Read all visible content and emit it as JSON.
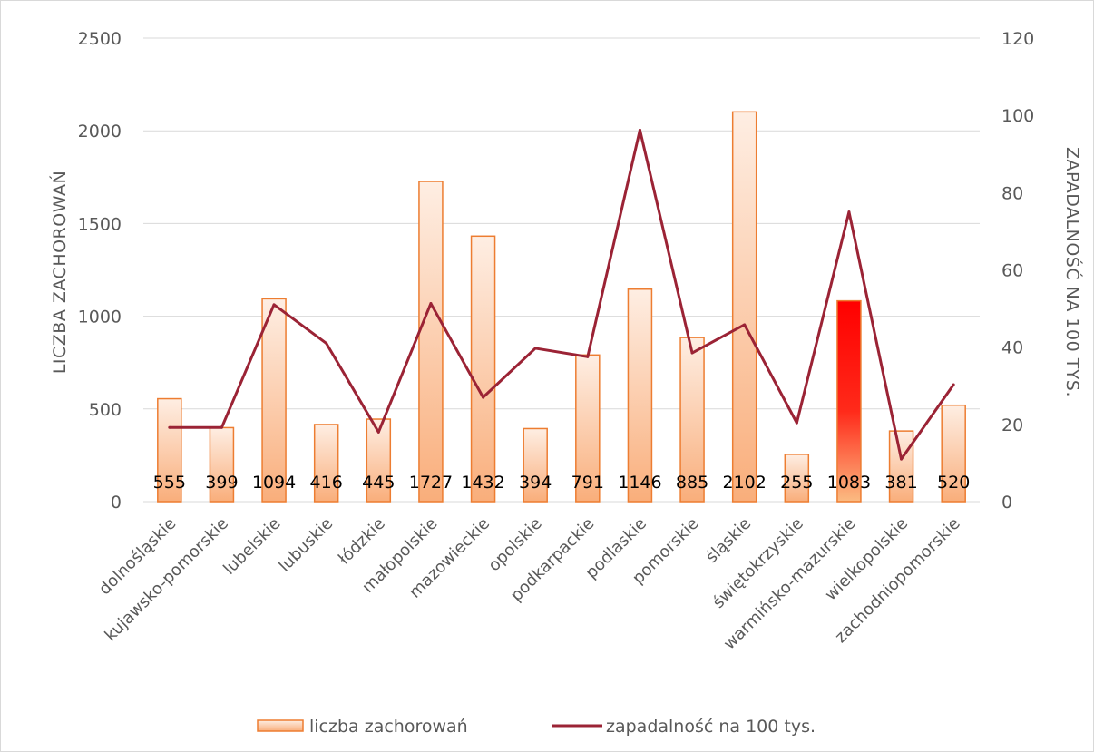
{
  "chart_data": {
    "type": "bar",
    "categories": [
      "dolnośląskie",
      "kujawsko-pomorskie",
      "lubelskie",
      "lubuskie",
      "łódzkie",
      "małopolskie",
      "mazowieckie",
      "opolskie",
      "podkarpackie",
      "podlaskie",
      "pomorskie",
      "śląskie",
      "świętokrzyskie",
      "warmińsko-mazurskie",
      "wielkopolskie",
      "zachodniopomorskie"
    ],
    "series": [
      {
        "name": "liczba zachorowań",
        "type": "bar",
        "axis": "left",
        "values": [
          555,
          399,
          1094,
          416,
          445,
          1727,
          1432,
          394,
          791,
          1146,
          885,
          2102,
          255,
          1083,
          381,
          520
        ],
        "data_labels": [
          "555",
          "399",
          "1094",
          "416",
          "445",
          "1727",
          "1432",
          "394",
          "791",
          "1146",
          "885",
          "2102",
          "255",
          "1083",
          "381",
          "520"
        ],
        "color": "#ED7D31",
        "highlight_index": 13,
        "highlight_color": "#FF0000"
      },
      {
        "name": "zapadalność na 100 tys.",
        "type": "line",
        "axis": "right",
        "values": [
          19.2,
          19.2,
          51.0,
          41.0,
          18.0,
          51.3,
          27.0,
          39.7,
          37.5,
          96.2,
          38.5,
          45.8,
          20.4,
          75.0,
          11.0,
          30.3
        ],
        "color": "#9B2335"
      }
    ],
    "ylabel": "LICZBA ZACHOROWAŃ",
    "y2label": "ZAPADALNOŚĆ NA 100 TYS.",
    "ylim": [
      0,
      2500
    ],
    "y2lim": [
      0,
      120
    ],
    "yticks": [
      "0",
      "500",
      "1000",
      "1500",
      "2000",
      "2500"
    ],
    "y2ticks": [
      "0",
      "20",
      "40",
      "60",
      "80",
      "100",
      "120"
    ],
    "grid": true,
    "legend_position": "bottom"
  },
  "colors": {
    "bar_fill_light": "#FDE4D3",
    "bar_fill_dark": "#F9B07F",
    "bar_stroke": "#ED7D31",
    "line": "#9B2335",
    "grid": "#D9D9D9"
  }
}
